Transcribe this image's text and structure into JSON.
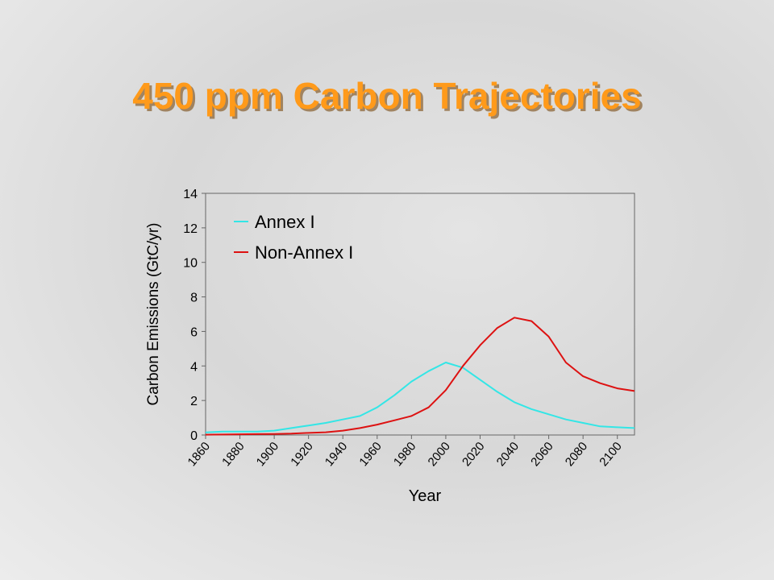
{
  "chart_data": {
    "type": "line",
    "title": "450 ppm Carbon Trajectories",
    "x_label": "Year",
    "y_label": "Carbon Emissions (GtC/yr)",
    "x": [
      1860,
      1870,
      1880,
      1890,
      1900,
      1910,
      1920,
      1930,
      1940,
      1950,
      1960,
      1970,
      1980,
      1990,
      2000,
      2010,
      2020,
      2030,
      2040,
      2050,
      2060,
      2070,
      2080,
      2090,
      2100,
      2110
    ],
    "series": [
      {
        "name": "Annex I",
        "color": "#33e6e6",
        "values": [
          0.15,
          0.2,
          0.2,
          0.2,
          0.25,
          0.4,
          0.55,
          0.7,
          0.9,
          1.1,
          1.6,
          2.3,
          3.1,
          3.7,
          4.2,
          3.9,
          3.2,
          2.5,
          1.9,
          1.5,
          1.2,
          0.9,
          0.7,
          0.5,
          0.45,
          0.4
        ]
      },
      {
        "name": "Non-Annex I",
        "color": "#dd1111",
        "values": [
          0.02,
          0.03,
          0.04,
          0.05,
          0.06,
          0.08,
          0.12,
          0.16,
          0.25,
          0.4,
          0.6,
          0.85,
          1.1,
          1.6,
          2.6,
          4.0,
          5.2,
          6.2,
          6.8,
          6.6,
          5.7,
          4.2,
          3.4,
          3.0,
          2.7,
          2.55
        ]
      }
    ],
    "xlim": [
      1860,
      2110
    ],
    "ylim": [
      0,
      14
    ],
    "xticks": [
      1860,
      1880,
      1900,
      1920,
      1940,
      1960,
      1980,
      2000,
      2020,
      2040,
      2060,
      2080,
      2100
    ],
    "yticks": [
      0,
      2,
      4,
      6,
      8,
      10,
      12,
      14
    ],
    "legend": "upper-left"
  }
}
